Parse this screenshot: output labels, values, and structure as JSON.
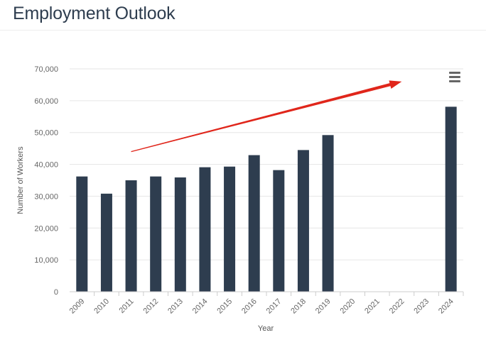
{
  "header": {
    "title": "Employment Outlook"
  },
  "menu": {
    "icon": "hamburger-menu-icon"
  },
  "annotation": {
    "type": "trend-arrow",
    "color": "#e0261b",
    "from": {
      "year": "2011",
      "value": 44000
    },
    "to": {
      "year": "2022",
      "value": 66000
    }
  },
  "colors": {
    "bar": "#2e3d4f",
    "grid": "#e6e6e6",
    "axis": "#cccccc"
  },
  "chart_data": {
    "type": "bar",
    "title": "",
    "xlabel": "Year",
    "ylabel": "Number of Workers",
    "ylim": [
      0,
      70000
    ],
    "yticks": [
      0,
      10000,
      20000,
      30000,
      40000,
      50000,
      60000,
      70000
    ],
    "ytick_labels": [
      "0",
      "10,000",
      "20,000",
      "30,000",
      "40,000",
      "50,000",
      "60,000",
      "70,000"
    ],
    "grid": true,
    "categories": [
      "2009",
      "2010",
      "2011",
      "2012",
      "2013",
      "2014",
      "2015",
      "2016",
      "2017",
      "2018",
      "2019",
      "2020",
      "2021",
      "2022",
      "2023",
      "2024"
    ],
    "values": [
      36200,
      30800,
      35000,
      36200,
      35900,
      39100,
      39300,
      42900,
      38200,
      44500,
      49200,
      null,
      null,
      null,
      null,
      58100
    ]
  }
}
